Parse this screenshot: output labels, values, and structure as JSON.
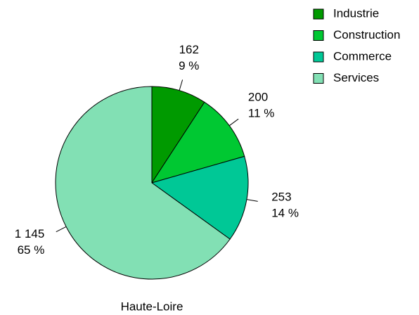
{
  "chart_data": {
    "type": "pie",
    "title": "Haute-Loire",
    "categories": [
      "Industrie",
      "Construction",
      "Commerce",
      "Services"
    ],
    "values": [
      162,
      200,
      253,
      1145
    ],
    "value_labels": [
      "162",
      "200",
      "253",
      "1 145"
    ],
    "percent_labels": [
      "9 %",
      "11 %",
      "14 %",
      "65 %"
    ],
    "colors": [
      "#009a00",
      "#00c832",
      "#00c896",
      "#82e0b4"
    ],
    "legend": "top-right"
  }
}
